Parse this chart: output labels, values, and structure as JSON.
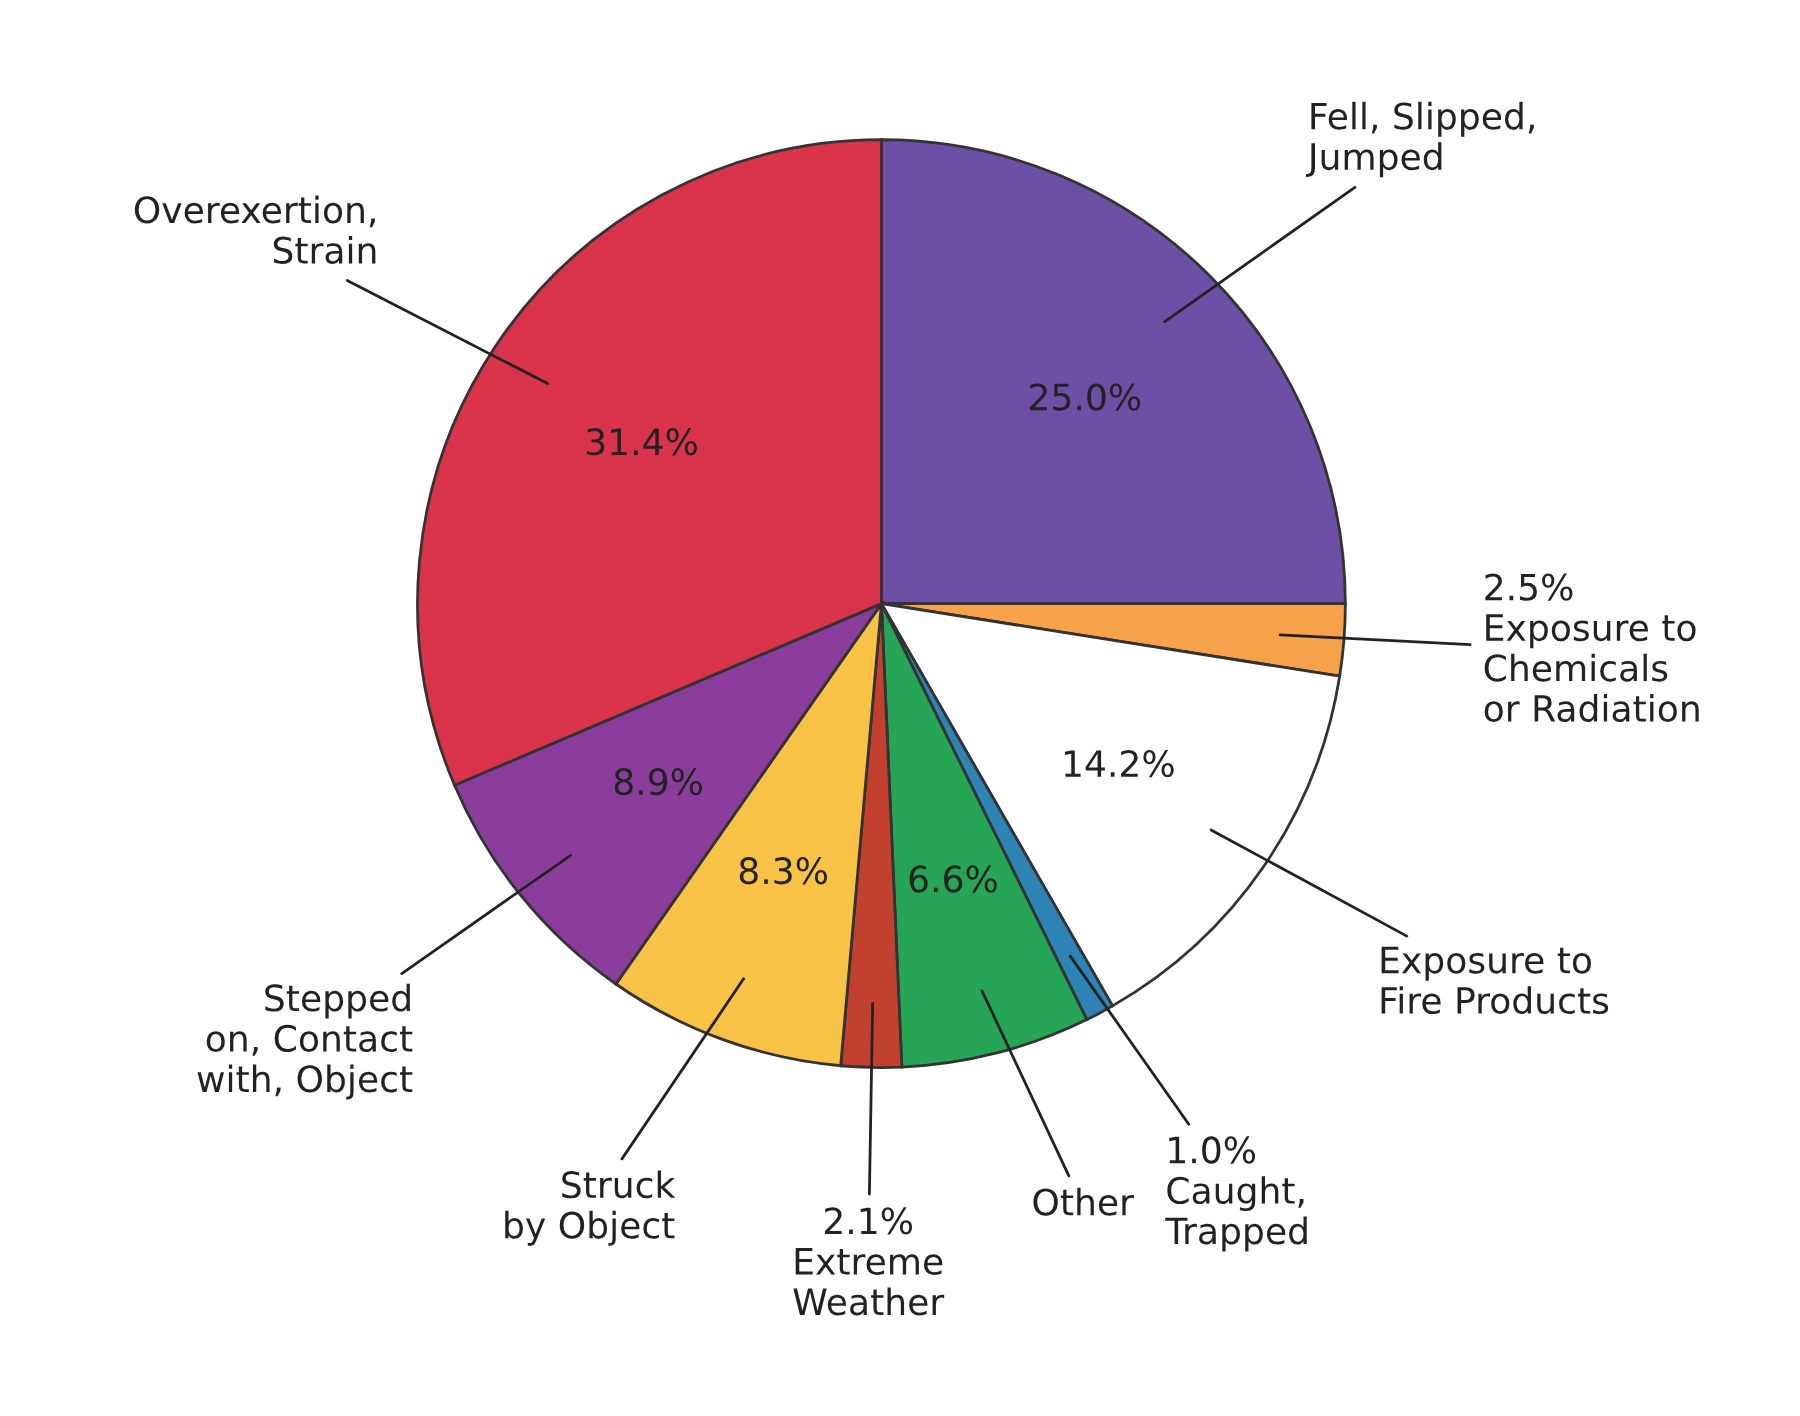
{
  "chart_data": {
    "type": "pie",
    "categories": [
      "Fell, Slipped,\nJumped",
      "Exposure to\nChemicals\nor Radiation",
      "Exposure to\nFire Products",
      "Caught,\nTrapped",
      "Other",
      "Extreme\nWeather",
      "Struck\nby Object",
      "Stepped\non, Contact\nwith, Object",
      "Overexertion,\nStrain"
    ],
    "values": [
      25.0,
      2.5,
      14.2,
      1.0,
      6.6,
      2.1,
      8.3,
      8.9,
      31.4
    ],
    "value_labels": [
      "25.0%",
      "2.5%",
      "14.2%",
      "1.0%",
      "6.6%",
      "2.1%",
      "8.3%",
      "8.9%",
      "31.4%"
    ],
    "colors": [
      "#6d4fa6",
      "#f5a24a",
      "#ffffff",
      "#2d84b5",
      "#27a556",
      "#c2402e",
      "#f7c246",
      "#8b3d9c",
      "#d9344c"
    ]
  }
}
